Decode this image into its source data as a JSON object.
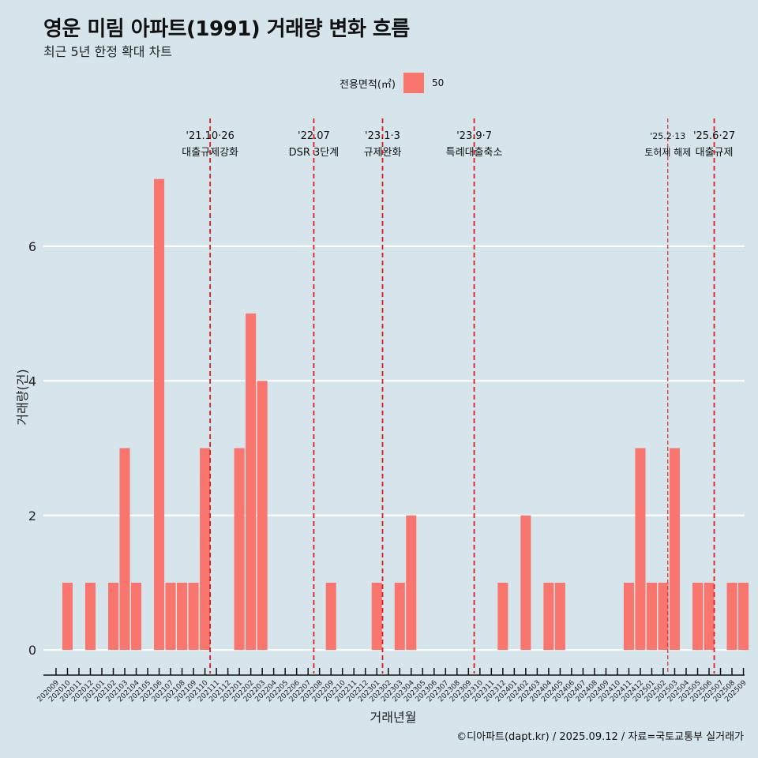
{
  "title": "영운 미림 아파트(1991) 거래량 변화 흐름",
  "subtitle": "최근 5년 한정 확대 차트",
  "caption": "©디아파트(dapt.kr) / 2025.09.12 / 자료=국토교통부 실거래가",
  "colors": {
    "bar": "#f8766d",
    "background": "#d6e4ec",
    "grid": "#ffffff",
    "event_line": "#e31a1c"
  },
  "chart_data": {
    "type": "bar",
    "title": "영운 미림 아파트(1991) 거래량 변화 흐름",
    "subtitle": "최근 5년 한정 확대 차트",
    "xlabel": "거래년월",
    "ylabel": "거래량(건)",
    "ylim": [
      -0.35,
      7.9
    ],
    "yticks": [
      0,
      2,
      4,
      6
    ],
    "legend_title": "전용면적(㎡)",
    "legend_position": "top",
    "grid": true,
    "categories": [
      "202009",
      "202010",
      "202011",
      "202012",
      "202101",
      "202102",
      "202103",
      "202104",
      "202105",
      "202106",
      "202107",
      "202108",
      "202109",
      "202110",
      "202111",
      "202112",
      "202201",
      "202202",
      "202203",
      "202204",
      "202205",
      "202206",
      "202207",
      "202208",
      "202209",
      "202210",
      "202211",
      "202212",
      "202301",
      "202302",
      "202303",
      "202304",
      "202305",
      "202306",
      "202307",
      "202308",
      "202309",
      "202310",
      "202311",
      "202312",
      "202401",
      "202402",
      "202403",
      "202404",
      "202405",
      "202406",
      "202407",
      "202408",
      "202409",
      "202410",
      "202411",
      "202412",
      "202501",
      "202502",
      "202503",
      "202504",
      "202505",
      "202506",
      "202507",
      "202508",
      "202509"
    ],
    "series": [
      {
        "name": "50",
        "values": [
          0,
          1,
          0,
          1,
          0,
          1,
          3,
          1,
          0,
          7,
          1,
          1,
          1,
          3,
          0,
          0,
          3,
          5,
          4,
          0,
          0,
          0,
          0,
          0,
          1,
          0,
          0,
          0,
          1,
          0,
          1,
          2,
          0,
          0,
          0,
          0,
          0,
          0,
          0,
          1,
          0,
          2,
          0,
          1,
          1,
          0,
          0,
          0,
          0,
          0,
          1,
          3,
          1,
          1,
          3,
          0,
          1,
          1,
          0,
          1,
          1
        ]
      }
    ],
    "annotations": [
      {
        "x": 13.45,
        "date": "'21.10·26",
        "label": "대출규제강화",
        "style": "dashed"
      },
      {
        "x": 22.5,
        "date": "'22.07",
        "label": "DSR 3단계",
        "style": "dashed"
      },
      {
        "x": 28.5,
        "date": "'23.1·3",
        "label": "규제완화",
        "style": "dashed"
      },
      {
        "x": 36.5,
        "date": "'23.9·7",
        "label": "특례대출축소",
        "style": "dashed"
      },
      {
        "x": 53.4,
        "date": "'25.2·13",
        "label": "토허제 해제",
        "style": "dashed-thin"
      },
      {
        "x": 57.45,
        "date": "'25.6·27",
        "label": "대출규제",
        "style": "dashed"
      }
    ]
  }
}
